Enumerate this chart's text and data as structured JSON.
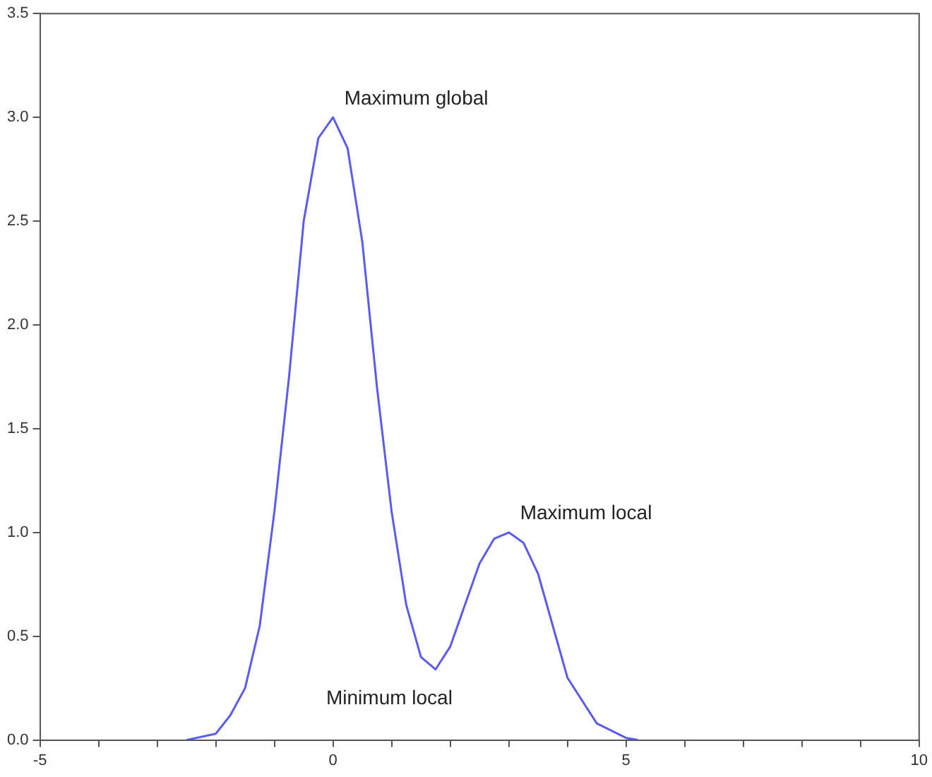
{
  "chart_data": {
    "type": "line",
    "x": [
      -2.5,
      -2,
      -1.75,
      -1.5,
      -1.25,
      -1,
      -0.75,
      -0.5,
      -0.25,
      0,
      0.25,
      0.5,
      0.75,
      1,
      1.25,
      1.5,
      1.75,
      2,
      2.25,
      2.5,
      2.75,
      3,
      3.25,
      3.5,
      3.75,
      4,
      4.5,
      5,
      5.2
    ],
    "series": [
      {
        "color": "#5a5af5",
        "values": [
          0,
          0.03,
          0.12,
          0.25,
          0.55,
          1.1,
          1.75,
          2.5,
          2.9,
          3.0,
          2.85,
          2.4,
          1.7,
          1.1,
          0.65,
          0.4,
          0.34,
          0.45,
          0.65,
          0.85,
          0.97,
          1.0,
          0.95,
          0.8,
          0.55,
          0.3,
          0.08,
          0.01,
          0
        ]
      }
    ],
    "xlim": [
      -5,
      10
    ],
    "xticks": [
      -5,
      {
        "value": -4,
        "label": null
      },
      {
        "value": -3,
        "label": null
      },
      {
        "value": -2,
        "label": null
      },
      {
        "value": -1,
        "label": null
      },
      0,
      {
        "value": 1,
        "label": null
      },
      {
        "value": 2,
        "label": null
      },
      {
        "value": 3,
        "label": null
      },
      {
        "value": 4,
        "label": null
      },
      5,
      {
        "value": 6,
        "label": null
      },
      {
        "value": 7,
        "label": null
      },
      {
        "value": 8,
        "label": null
      },
      {
        "value": 9,
        "label": null
      },
      10
    ],
    "ylim": [
      0,
      3.5
    ],
    "yticks": [
      {
        "value": 0,
        "label": "0.0"
      },
      0.5,
      {
        "value": 1,
        "label": "1.0"
      },
      1.5,
      {
        "value": 2,
        "label": "2.0"
      },
      2.5,
      {
        "value": 3,
        "label": "3.0"
      },
      3.5
    ],
    "grid": false,
    "legend": false,
    "marker": "none",
    "line_style": "solid",
    "annotations": [
      {
        "text": "Maximum global",
        "x": 0,
        "y": 3.0
      },
      {
        "text": "Maximum local",
        "x": 3,
        "y": 1.0
      },
      {
        "text": "Minimum local",
        "x": 1.75,
        "y": 0.34
      }
    ]
  }
}
